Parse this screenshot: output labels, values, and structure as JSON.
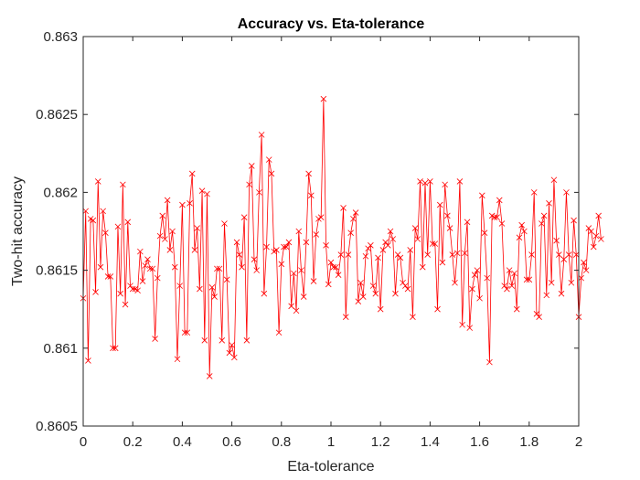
{
  "chart_data": {
    "type": "line",
    "title": "Accuracy vs. Eta-tolerance",
    "xlabel": "Eta-tolerance",
    "ylabel": "Two-hit accuracy",
    "xlim": [
      0,
      2
    ],
    "ylim": [
      0.8605,
      0.863
    ],
    "xticks": [
      0,
      0.2,
      0.4,
      0.6,
      0.8,
      1,
      1.2,
      1.4,
      1.6,
      1.8,
      2
    ],
    "xtick_labels": [
      "0",
      "0.2",
      "0.4",
      "0.6",
      "0.8",
      "1",
      "1.2",
      "1.4",
      "1.6",
      "1.8",
      "2"
    ],
    "yticks": [
      0.8605,
      0.861,
      0.8615,
      0.862,
      0.8625,
      0.863
    ],
    "ytick_labels": [
      "0.8605",
      "0.861",
      "0.8615",
      "0.862",
      "0.8625",
      "0.863"
    ],
    "grid": false,
    "marker": "x",
    "color": "#ff0000",
    "series": [
      {
        "x_start": 0,
        "x_step": 0.01,
        "values": [
          0.86132,
          0.86188,
          0.86092,
          0.86183,
          0.86182,
          0.86136,
          0.86207,
          0.86152,
          0.86188,
          0.86174,
          0.86146,
          0.86146,
          0.861,
          0.861,
          0.86178,
          0.86135,
          0.86205,
          0.86128,
          0.86181,
          0.8614,
          0.86138,
          0.86138,
          0.86137,
          0.86162,
          0.86143,
          0.86153,
          0.86157,
          0.86151,
          0.86151,
          0.86106,
          0.86145,
          0.86172,
          0.86185,
          0.8617,
          0.86195,
          0.86163,
          0.86175,
          0.86152,
          0.86093,
          0.8614,
          0.86192,
          0.8611,
          0.8611,
          0.86193,
          0.86212,
          0.86163,
          0.86177,
          0.86138,
          0.86201,
          0.86105,
          0.86199,
          0.86082,
          0.86139,
          0.86133,
          0.86151,
          0.86151,
          0.86105,
          0.8618,
          0.86144,
          0.86097,
          0.86102,
          0.86094,
          0.86168,
          0.8616,
          0.86152,
          0.86184,
          0.86105,
          0.86205,
          0.86217,
          0.86157,
          0.8615,
          0.862,
          0.86237,
          0.86135,
          0.86165,
          0.86221,
          0.86212,
          0.86162,
          0.86163,
          0.8611,
          0.86154,
          0.86165,
          0.86165,
          0.86168,
          0.86127,
          0.86148,
          0.86124,
          0.86175,
          0.8615,
          0.86133,
          0.86168,
          0.86212,
          0.86198,
          0.86143,
          0.86173,
          0.86183,
          0.86184,
          0.8626,
          0.86166,
          0.86141,
          0.86155,
          0.86152,
          0.86152,
          0.86147,
          0.8616,
          0.8619,
          0.8612,
          0.8616,
          0.86174,
          0.86183,
          0.86187,
          0.8613,
          0.86142,
          0.86133,
          0.86159,
          0.86164,
          0.86166,
          0.8614,
          0.86135,
          0.86158,
          0.86125,
          0.86163,
          0.86168,
          0.86166,
          0.86175,
          0.8617,
          0.86135,
          0.8616,
          0.86158,
          0.86142,
          0.8614,
          0.86138,
          0.86163,
          0.8612,
          0.86177,
          0.8617,
          0.86207,
          0.86152,
          0.86206,
          0.8616,
          0.86207,
          0.86167,
          0.86167,
          0.86125,
          0.86192,
          0.86155,
          0.86205,
          0.86185,
          0.86177,
          0.8616,
          0.86142,
          0.86161,
          0.86207,
          0.86115,
          0.86161,
          0.86181,
          0.86113,
          0.86138,
          0.86147,
          0.8615,
          0.86132,
          0.86198,
          0.86174,
          0.86145,
          0.86091,
          0.86185,
          0.86184,
          0.86184,
          0.86195,
          0.8618,
          0.8614,
          0.86138,
          0.8615,
          0.8614,
          0.86148,
          0.86125,
          0.86171,
          0.86179,
          0.86175,
          0.86144,
          0.86144,
          0.8616,
          0.862,
          0.86122,
          0.8612,
          0.8618,
          0.86185,
          0.86134,
          0.86193,
          0.86142,
          0.86208,
          0.86169,
          0.8616,
          0.86135,
          0.86157,
          0.862,
          0.8616,
          0.86142,
          0.86182,
          0.8616,
          0.8612,
          0.86145,
          0.86155,
          0.8615,
          0.86177,
          0.86175,
          0.86165,
          0.86172,
          0.86185,
          0.8617
        ]
      }
    ]
  }
}
